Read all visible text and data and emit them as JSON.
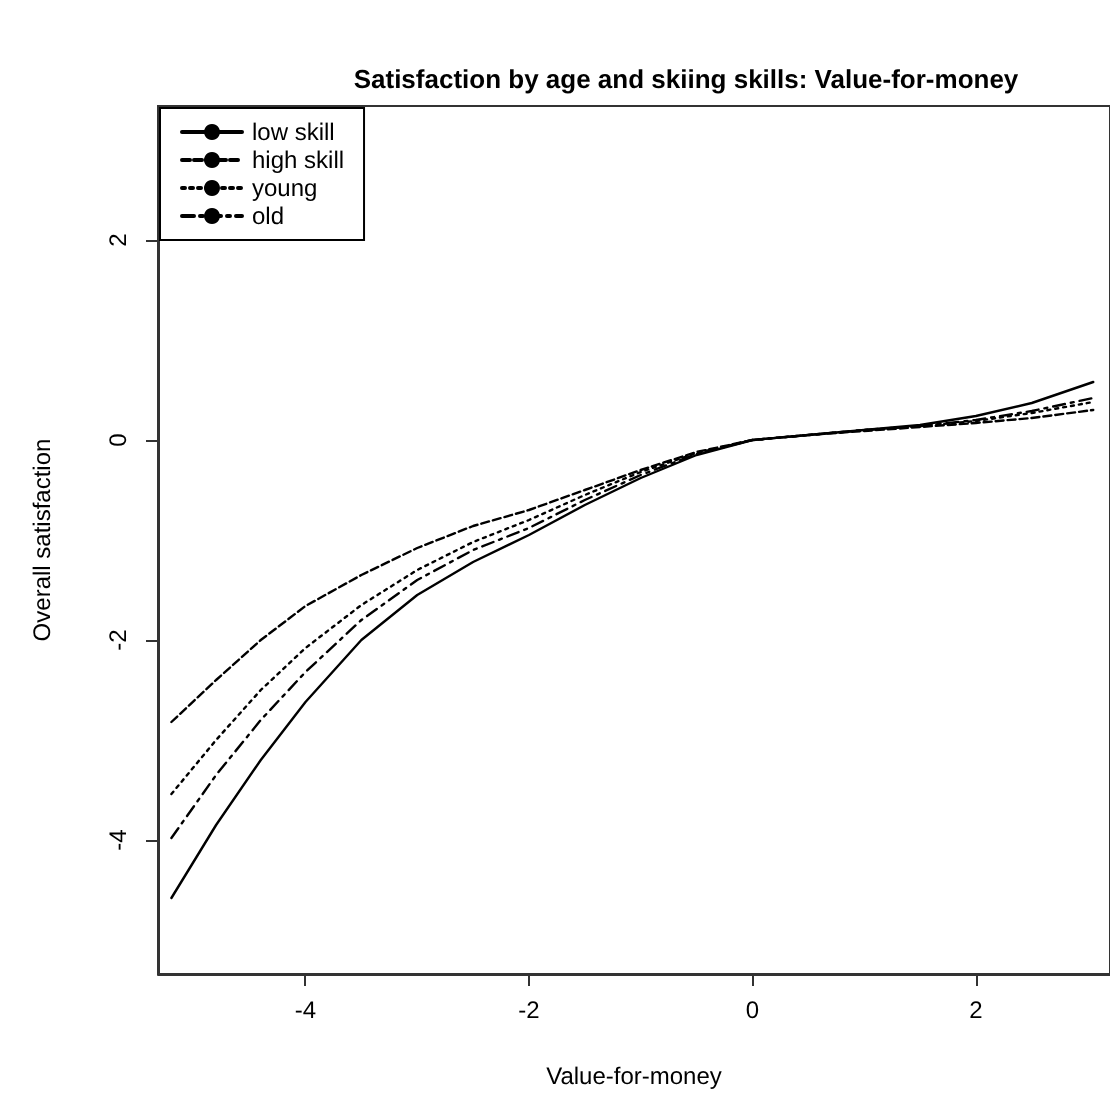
{
  "chart_data": {
    "type": "line",
    "title": "Satisfaction by age and skiing skills: Value-for-money",
    "xlabel": "Value-for-money",
    "ylabel": "Overall satisfaction",
    "xlim": [
      -5.32,
      3.2
    ],
    "ylim": [
      -5.34,
      3.34
    ],
    "xticks": [
      -4,
      -2,
      0,
      2
    ],
    "yticks": [
      -4,
      -2,
      0,
      2
    ],
    "grid": false,
    "legend": "top left",
    "marker": "none",
    "x": [
      -5.2,
      -4.8,
      -4.4,
      -4,
      -3.5,
      -3,
      -2.5,
      -2,
      -1.5,
      -1,
      -0.5,
      0,
      0.5,
      1,
      1.5,
      2,
      2.5,
      3.05
    ],
    "series": [
      {
        "name": "low skill",
        "color": "#000000",
        "line_style": "solid",
        "values": [
          -4.58,
          -3.85,
          -3.2,
          -2.62,
          -2.0,
          -1.55,
          -1.22,
          -0.95,
          -0.65,
          -0.38,
          -0.15,
          0,
          0.05,
          0.1,
          0.15,
          0.24,
          0.37,
          0.58
        ]
      },
      {
        "name": "high skill",
        "color": "#000000",
        "line_style": "dashed",
        "values": [
          -2.82,
          -2.4,
          -2.0,
          -1.66,
          -1.35,
          -1.08,
          -0.86,
          -0.7,
          -0.5,
          -0.3,
          -0.12,
          0,
          0.05,
          0.09,
          0.13,
          0.17,
          0.22,
          0.3
        ]
      },
      {
        "name": "young",
        "color": "#000000",
        "line_style": "dotted",
        "values": [
          -3.54,
          -3.0,
          -2.5,
          -2.08,
          -1.65,
          -1.3,
          -1.02,
          -0.8,
          -0.55,
          -0.32,
          -0.13,
          0,
          0.05,
          0.1,
          0.14,
          0.19,
          0.27,
          0.38
        ]
      },
      {
        "name": "old",
        "color": "#000000",
        "line_style": "dashdot",
        "values": [
          -3.98,
          -3.35,
          -2.8,
          -2.32,
          -1.8,
          -1.4,
          -1.1,
          -0.88,
          -0.6,
          -0.35,
          -0.14,
          0,
          0.05,
          0.1,
          0.14,
          0.2,
          0.29,
          0.42
        ]
      }
    ]
  }
}
